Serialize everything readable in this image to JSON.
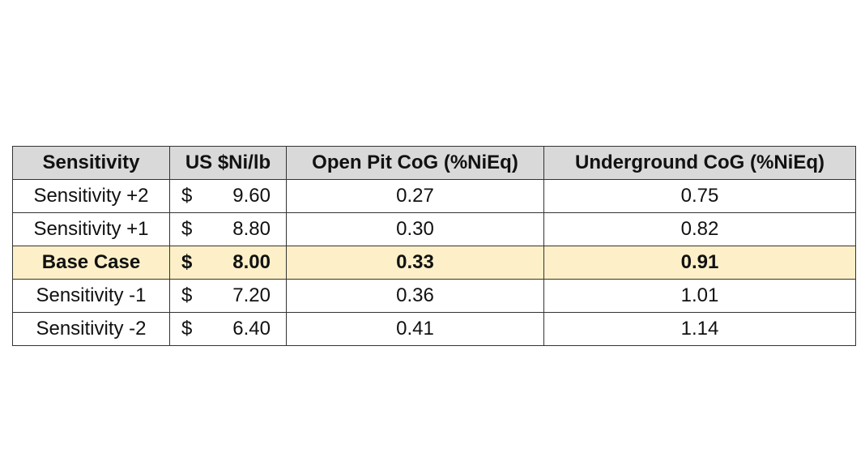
{
  "table": {
    "header": [
      "Sensitivity",
      "US $Ni/lb",
      "Open Pit CoG (%NiEq)",
      "Underground CoG (%NiEq)"
    ],
    "rows": [
      {
        "label": "Sensitivity +2",
        "currency": "$",
        "price": "9.60",
        "open_pit": "0.27",
        "underground": "0.75"
      },
      {
        "label": "Sensitivity +1",
        "currency": "$",
        "price": "8.80",
        "open_pit": "0.30",
        "underground": "0.82"
      },
      {
        "label": "Base Case",
        "currency": "$",
        "price": "8.00",
        "open_pit": "0.33",
        "underground": "0.91"
      },
      {
        "label": "Sensitivity -1",
        "currency": "$",
        "price": "7.20",
        "open_pit": "0.36",
        "underground": "1.01"
      },
      {
        "label": "Sensitivity -2",
        "currency": "$",
        "price": "6.40",
        "open_pit": "0.41",
        "underground": "1.14"
      }
    ],
    "highlight_row": 2,
    "header_color": "#d9d9d9",
    "highlight_color": "#fdf0c8"
  }
}
